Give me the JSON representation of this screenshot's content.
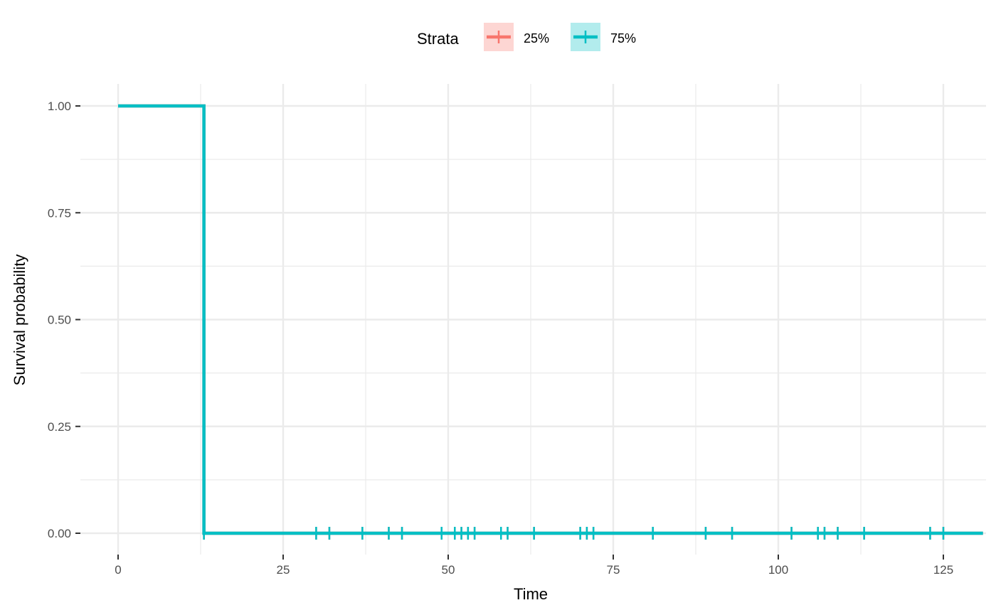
{
  "chart_data": {
    "type": "line",
    "step": true,
    "xlabel": "Time",
    "ylabel": "Survival probability",
    "xlim": [
      0,
      131
    ],
    "ylim": [
      0,
      1
    ],
    "x_ticks": [
      0,
      25,
      50,
      75,
      100,
      125
    ],
    "x_tick_labels": [
      "0",
      "25",
      "50",
      "75",
      "100",
      "125"
    ],
    "y_ticks": [
      0,
      0.25,
      0.5,
      0.75,
      1
    ],
    "y_tick_labels": [
      "0.00",
      "0.25",
      "0.50",
      "0.75",
      "1.00"
    ],
    "grid": true,
    "legend": {
      "title": "Strata",
      "position": "top"
    },
    "series": [
      {
        "name": "25%",
        "color": "#F8766D",
        "steps": [
          [
            0,
            1
          ],
          [
            13,
            1
          ],
          [
            13,
            0
          ],
          [
            131,
            0
          ]
        ],
        "censor_x": [
          13,
          30,
          32,
          37,
          41,
          43,
          49,
          51,
          52,
          53,
          54,
          58,
          59,
          63,
          70,
          71,
          72,
          81,
          89,
          93,
          102,
          106,
          107,
          109,
          113,
          123,
          125
        ]
      },
      {
        "name": "75%",
        "color": "#00BFC4",
        "steps": [
          [
            0,
            1
          ],
          [
            13,
            1
          ],
          [
            13,
            0
          ],
          [
            131,
            0
          ]
        ],
        "censor_x": [
          13,
          30,
          32,
          37,
          41,
          43,
          49,
          51,
          52,
          53,
          54,
          58,
          59,
          63,
          70,
          71,
          72,
          81,
          89,
          93,
          102,
          106,
          107,
          109,
          113,
          123,
          125
        ]
      }
    ]
  }
}
